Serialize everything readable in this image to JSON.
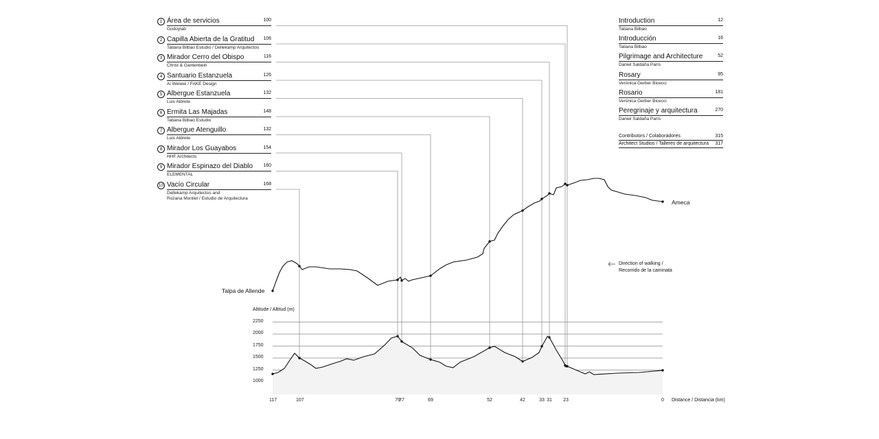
{
  "sites": [
    {
      "n": "1",
      "title": "Área de servicios",
      "page": "100",
      "sub": "Godoylab"
    },
    {
      "n": "2",
      "title": "Capilla Abierta de la Gratitud",
      "page": "106",
      "sub": "Tatiana Bilbao Estudio / Dellekamp Arquitectos"
    },
    {
      "n": "3",
      "title": "Mirador Cerro del Obispo",
      "page": "116",
      "sub": "Christ & Gantenbein"
    },
    {
      "n": "4",
      "title": "Santuario Estanzuela",
      "page": "126",
      "sub": "Ai Weiwei / FAKE Design"
    },
    {
      "n": "5",
      "title": "Albergue Estanzuela",
      "page": "132",
      "sub": "Luis Aldrete"
    },
    {
      "n": "6",
      "title": "Ermita Las Majadas",
      "page": "148",
      "sub": "Tatiana Bilbao Estudio"
    },
    {
      "n": "7",
      "title": "Albergue Atenguillo",
      "page": "132",
      "sub": "Luis Aldrete"
    },
    {
      "n": "8",
      "title": "Mirador Los Guayabos",
      "page": "154",
      "sub": "HHF Architects"
    },
    {
      "n": "9",
      "title": "Mirador Espinazo del Diablo",
      "page": "160",
      "sub": "ELEMENTAL"
    },
    {
      "n": "10",
      "title": "Vacío Circular",
      "page": "168",
      "sub": "Dellekamp Arquitectos and\nRozana Montiel / Estudio de Arquitectura"
    }
  ],
  "essays": [
    {
      "title": "Introduction",
      "page": "12",
      "sub": "Tatiana Bilbao"
    },
    {
      "title": "Introducción",
      "page": "16",
      "sub": "Tatiana Bilbao"
    },
    {
      "title": "Pilgrimage and Architecture",
      "page": "52",
      "sub": "Daniel Saldaña París"
    },
    {
      "title": "Rosary",
      "page": "95",
      "sub": "Verónica Gerber Bicecci"
    },
    {
      "title": "Rosario",
      "page": "181",
      "sub": "Verónica Gerber Bicecci"
    },
    {
      "title": "Peregrinaje y arquitectura",
      "page": "270",
      "sub": "Daniel Saldaña París"
    }
  ],
  "back_matter": [
    {
      "title": "Contributors / Colaboradores",
      "page": "315"
    },
    {
      "title": "Architect Studios / Talleres de arquitectura",
      "page": "317"
    }
  ],
  "route": {
    "start": "Talpa de Allende",
    "end": "Ameca",
    "direction_line1": "Direction of walking /",
    "direction_line2": "Recorrido de la caminata",
    "direction_icon": "arrow-left-icon"
  },
  "chart_data": {
    "type": "area",
    "ylabel": "Altitude / Altitud (m)",
    "xlabel": "Distance / Distancia (km)",
    "yticks": [
      "2250",
      "2000",
      "1750",
      "1500",
      "1250",
      "1000"
    ],
    "xticks": [
      "117",
      "107",
      "79",
      "77",
      "69",
      "52",
      "42",
      "33",
      "31",
      "23",
      "0"
    ],
    "xlim": [
      117,
      0
    ],
    "site_km": [
      23,
      23,
      31,
      33,
      42,
      52,
      69,
      77,
      79,
      107
    ],
    "profile": [
      [
        117,
        1170
      ],
      [
        115,
        1200
      ],
      [
        112.6,
        1285
      ],
      [
        110.6,
        1455
      ],
      [
        108.8,
        1600
      ],
      [
        107,
        1500
      ],
      [
        105.6,
        1445
      ],
      [
        103.9,
        1370
      ],
      [
        102.3,
        1285
      ],
      [
        100.3,
        1315
      ],
      [
        97.4,
        1385
      ],
      [
        95.4,
        1430
      ],
      [
        93.5,
        1485
      ],
      [
        91.5,
        1455
      ],
      [
        88.6,
        1530
      ],
      [
        85.6,
        1585
      ],
      [
        82.7,
        1770
      ],
      [
        80.8,
        1915
      ],
      [
        79,
        1955
      ],
      [
        77,
        1845
      ],
      [
        74.1,
        1715
      ],
      [
        71.9,
        1555
      ],
      [
        69,
        1470
      ],
      [
        66.4,
        1415
      ],
      [
        64.5,
        1330
      ],
      [
        62.5,
        1300
      ],
      [
        60.5,
        1415
      ],
      [
        56.5,
        1530
      ],
      [
        52,
        1715
      ],
      [
        50.5,
        1745
      ],
      [
        47.4,
        1615
      ],
      [
        44.3,
        1530
      ],
      [
        42,
        1430
      ],
      [
        37.5,
        1515
      ],
      [
        34.3,
        1615
      ],
      [
        33,
        1745
      ],
      [
        31.5,
        1955
      ],
      [
        31,
        1930
      ],
      [
        27.7,
        1670
      ],
      [
        24.3,
        1430
      ],
      [
        23,
        1315
      ],
      [
        22.7,
        1330
      ],
      [
        20.4,
        1245
      ],
      [
        18.4,
        1170
      ],
      [
        17.4,
        1215
      ],
      [
        16.4,
        1155
      ],
      [
        10.7,
        1185
      ],
      [
        5.7,
        1200
      ],
      [
        0,
        1245
      ]
    ],
    "grid": true
  },
  "colors": {
    "ink": "#111111",
    "guide": "#9a9a9a",
    "grid": "#8a8a8a",
    "fill": "#f3f3f3"
  }
}
